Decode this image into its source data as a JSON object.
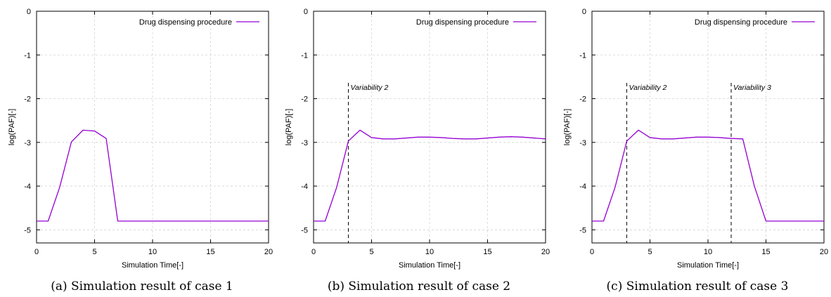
{
  "chart_data": [
    {
      "type": "line",
      "caption": "(a) Simulation result of case 1",
      "xlabel": "Simulation Time[-]",
      "ylabel": "log(PAF)[-]",
      "xlim": [
        0,
        20
      ],
      "ylim": [
        -5.3,
        0
      ],
      "xticks": [
        0,
        5,
        10,
        15,
        20
      ],
      "yticks": [
        0,
        -1,
        -2,
        -3,
        -4,
        -5
      ],
      "grid": true,
      "legend": "top-right",
      "series": [
        {
          "name": "Drug dispensing procedure",
          "color": "#9400d3",
          "x": [
            0,
            1,
            2,
            3,
            4,
            5,
            6,
            7,
            8,
            9,
            10,
            11,
            12,
            13,
            14,
            15,
            16,
            17,
            18,
            19,
            20
          ],
          "y": [
            -4.8,
            -4.8,
            -4.02,
            -2.99,
            -2.72,
            -2.74,
            -2.91,
            -4.8,
            -4.8,
            -4.8,
            -4.8,
            -4.8,
            -4.8,
            -4.8,
            -4.8,
            -4.8,
            -4.8,
            -4.8,
            -4.8,
            -4.8,
            -4.8
          ]
        }
      ],
      "annotations": []
    },
    {
      "type": "line",
      "caption": "(b) Simulation result of case 2",
      "xlabel": "Simulation Time[-]",
      "ylabel": "log(PAF)[-]",
      "xlim": [
        0,
        20
      ],
      "ylim": [
        -5.3,
        0
      ],
      "xticks": [
        0,
        5,
        10,
        15,
        20
      ],
      "yticks": [
        0,
        -1,
        -2,
        -3,
        -4,
        -5
      ],
      "grid": true,
      "legend": "top-right",
      "series": [
        {
          "name": "Drug dispensing procedure",
          "color": "#9400d3",
          "x": [
            0,
            1,
            2,
            3,
            4,
            5,
            6,
            7,
            8,
            9,
            10,
            11,
            12,
            13,
            14,
            15,
            16,
            17,
            18,
            19,
            20
          ],
          "y": [
            -4.8,
            -4.8,
            -4.02,
            -2.97,
            -2.72,
            -2.89,
            -2.92,
            -2.92,
            -2.9,
            -2.88,
            -2.88,
            -2.89,
            -2.91,
            -2.92,
            -2.92,
            -2.9,
            -2.88,
            -2.87,
            -2.88,
            -2.9,
            -2.92
          ]
        }
      ],
      "annotations": [
        {
          "x": 3,
          "label": "Variability 2"
        }
      ]
    },
    {
      "type": "line",
      "caption": "(c) Simulation result of case 3",
      "xlabel": "Simulation Time[-]",
      "ylabel": "log(PAF)[-]",
      "xlim": [
        0,
        20
      ],
      "ylim": [
        -5.3,
        0
      ],
      "xticks": [
        0,
        5,
        10,
        15,
        20
      ],
      "yticks": [
        0,
        -1,
        -2,
        -3,
        -4,
        -5
      ],
      "grid": true,
      "legend": "top-right",
      "series": [
        {
          "name": "Drug dispensing procedure",
          "color": "#9400d3",
          "x": [
            0,
            1,
            2,
            3,
            4,
            5,
            6,
            7,
            8,
            9,
            10,
            11,
            12,
            13,
            14,
            15,
            16,
            17,
            18,
            19,
            20
          ],
          "y": [
            -4.8,
            -4.8,
            -4.02,
            -2.97,
            -2.72,
            -2.89,
            -2.92,
            -2.92,
            -2.9,
            -2.88,
            -2.88,
            -2.89,
            -2.91,
            -2.92,
            -4.0,
            -4.8,
            -4.8,
            -4.8,
            -4.8,
            -4.8,
            -4.8
          ]
        }
      ],
      "annotations": [
        {
          "x": 3,
          "label": "Variability 2"
        },
        {
          "x": 12,
          "label": "Variability 3"
        }
      ]
    }
  ]
}
